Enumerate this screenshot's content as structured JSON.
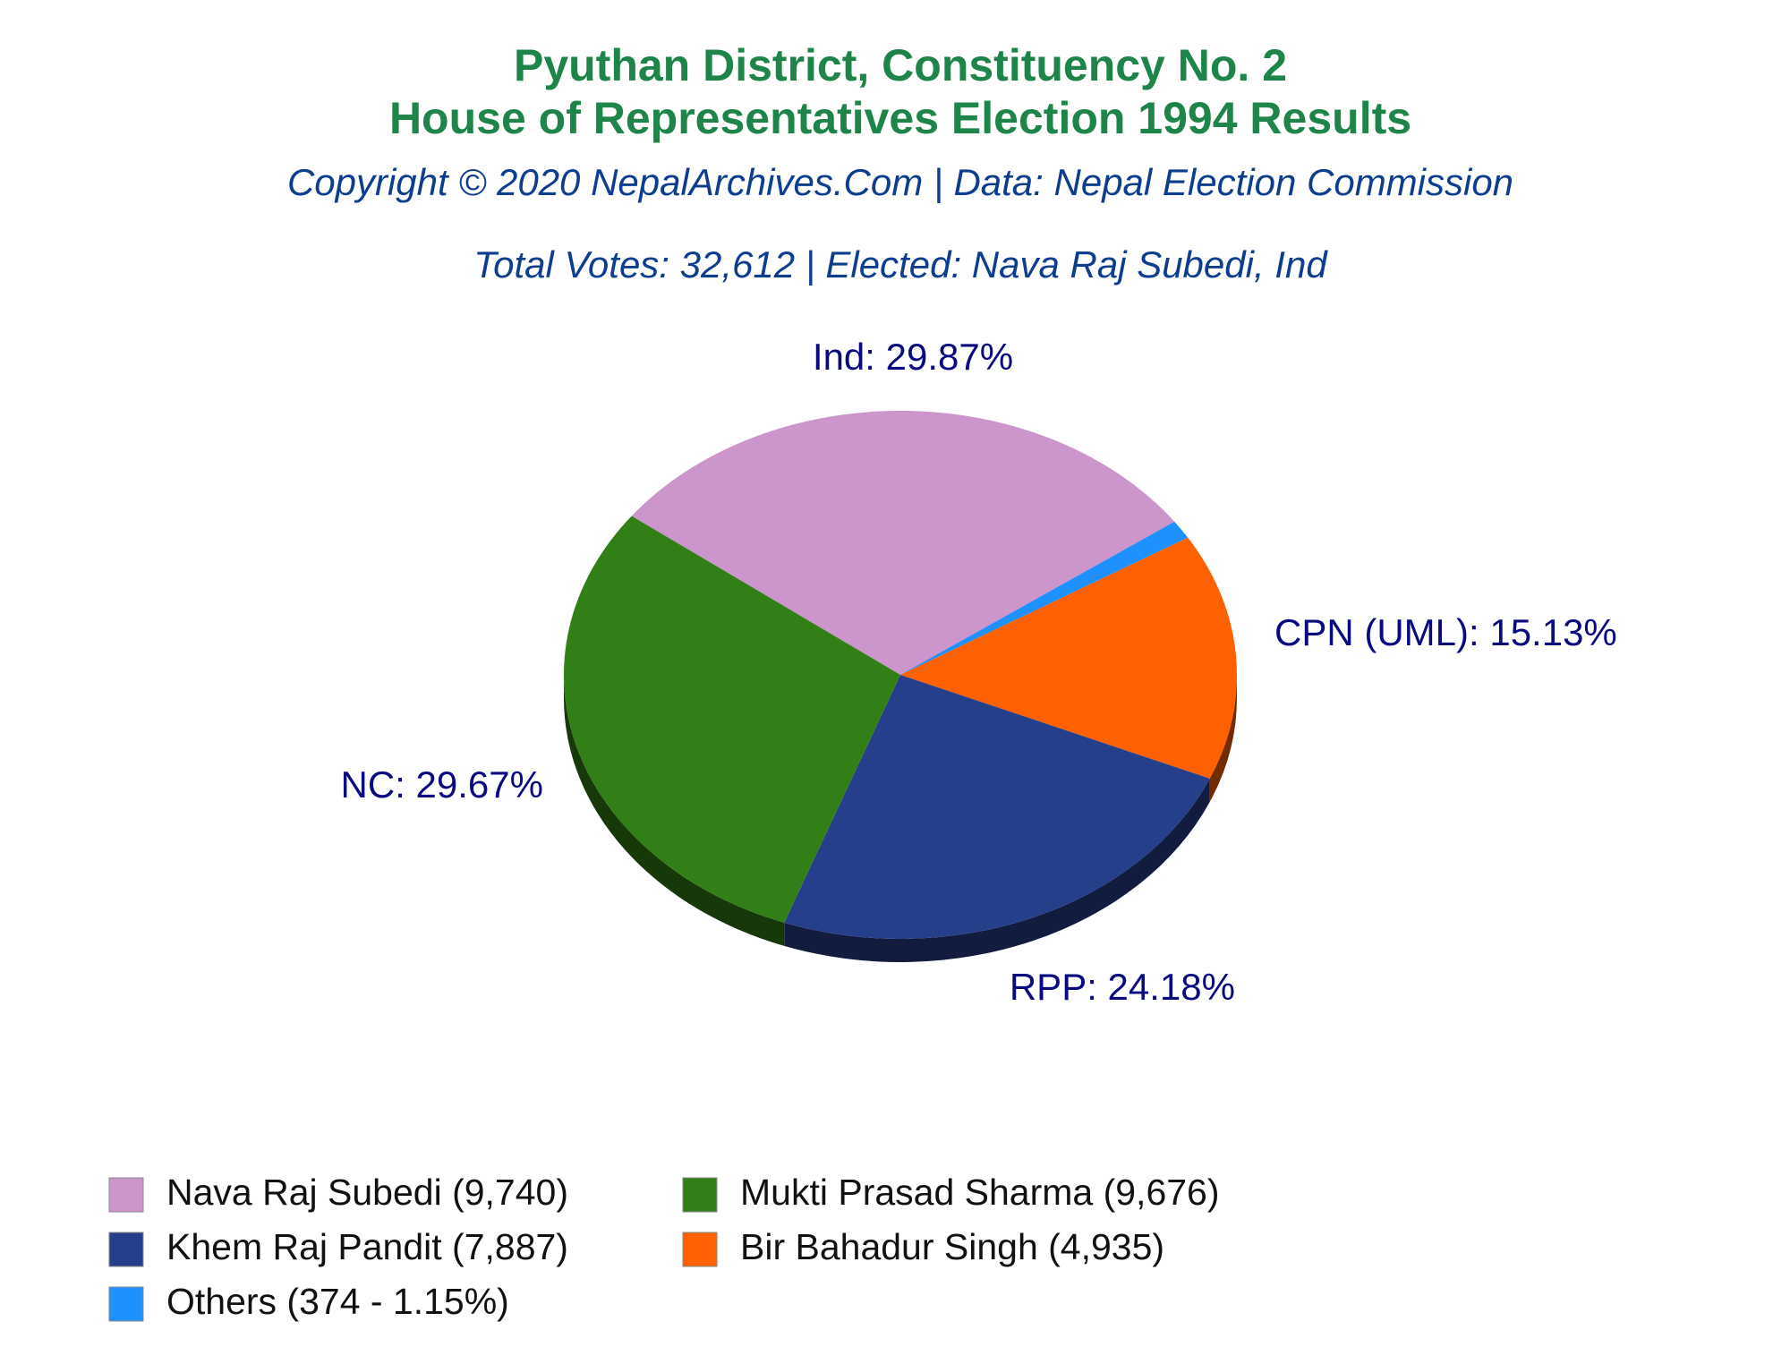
{
  "chart_data": {
    "type": "pie",
    "title": "Pyuthan District, Constituency No. 2",
    "subtitle": "House of Representatives Election 1994 Results",
    "copyright": "Copyright © 2020 NepalArchives.Com | Data: Nepal Election Commission",
    "summary": "Total Votes: 32,612 | Elected: Nava Raj Subedi, Ind",
    "categories": [
      "Nava Raj Subedi (9,740)",
      "Mukti Prasad Sharma (9,676)",
      "Khem Raj Pandit (7,887)",
      "Bir Bahadur Singh (4,935)",
      "Others (374 - 1.15%)"
    ],
    "values": [
      29.87,
      29.67,
      24.18,
      15.13,
      1.15
    ],
    "value_labels": [
      "Ind: 29.87%",
      "NC: 29.67%",
      "RPP: 24.18%",
      "CPN (UML): 15.13%",
      null
    ],
    "colors": [
      "#cc95cc",
      "#327f17",
      "#263f8a",
      "#ff6000",
      "#1e90ff"
    ]
  }
}
